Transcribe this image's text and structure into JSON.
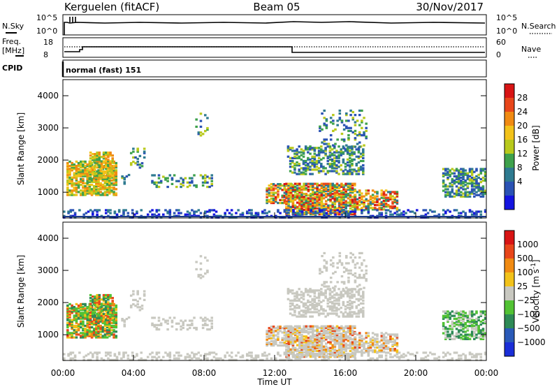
{
  "header": {
    "station": "Kerguelen (fitACF)",
    "beam": "Beam 05",
    "date": "30/Nov/2017"
  },
  "panels_top": {
    "nsky": {
      "label": "N.Sky",
      "left_ticks": [
        "10^5",
        "10^0"
      ],
      "right_label": "N.Search",
      "right_ticks": [
        "10^5",
        "10^0"
      ]
    },
    "freq": {
      "label_line1": "Freq.",
      "label_line2": "[MHz]",
      "left_ticks": [
        "18",
        "8"
      ],
      "right_label": "Nave",
      "right_ticks": [
        "60",
        "0"
      ]
    },
    "cpid": {
      "label": "CPID",
      "value": "normal (fast) 151"
    }
  },
  "chart_data": [
    {
      "type": "heatmap",
      "name": "power",
      "ylabel": "Slant Range [km]",
      "xlabel": "",
      "yticks": [
        "1000",
        "2000",
        "3000",
        "4000"
      ],
      "ylim": [
        200,
        4500
      ],
      "colorbar": {
        "label": "Power [dB]",
        "ticks": [
          "28",
          "24",
          "20",
          "16",
          "12",
          "8",
          "4"
        ],
        "colors": [
          "#1414e0",
          "#2a52b4",
          "#2e7a90",
          "#3ea14c",
          "#b8c91c",
          "#f2c21a",
          "#f08a12",
          "#e8461a",
          "#d81414"
        ]
      }
    },
    {
      "type": "heatmap",
      "name": "velocity",
      "ylabel": "Slant Range [km]",
      "xlabel": "Time UT",
      "yticks": [
        "1000",
        "2000",
        "3000",
        "4000"
      ],
      "ylim": [
        200,
        4500
      ],
      "xticks": [
        "00:00",
        "04:00",
        "08:00",
        "12:00",
        "16:00",
        "20:00",
        "00:00"
      ],
      "colorbar": {
        "label": "Velocity [m s",
        "label_sup": "-1",
        "label_end": "]",
        "ticks": [
          "1000",
          "500",
          "100",
          "25",
          "−25",
          "−100",
          "−500",
          "−1000"
        ],
        "colors": [
          "#1a2ed8",
          "#2a5ab8",
          "#2e8a56",
          "#52c234",
          "#c8c8c0",
          "#f2c21a",
          "#f08a12",
          "#e8461a",
          "#d81414"
        ]
      }
    }
  ]
}
